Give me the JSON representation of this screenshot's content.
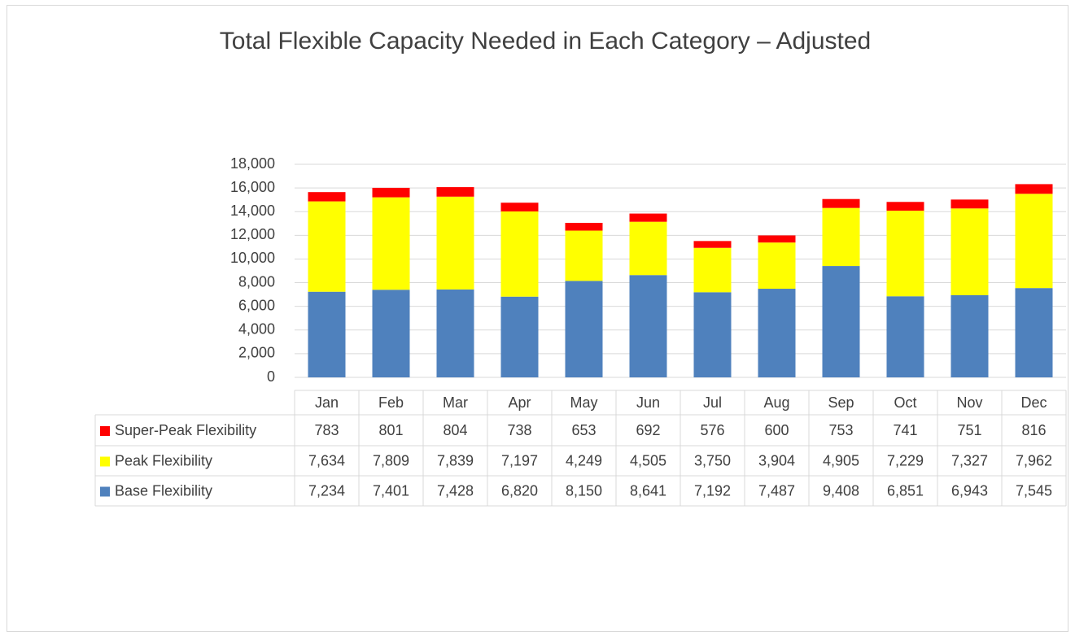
{
  "chart_data": {
    "type": "stacked_bar",
    "title": "Total Flexible Capacity Needed in Each Category – Adjusted",
    "categories": [
      "Jan",
      "Feb",
      "Mar",
      "Apr",
      "May",
      "Jun",
      "Jul",
      "Aug",
      "Sep",
      "Oct",
      "Nov",
      "Dec"
    ],
    "series": [
      {
        "name": "Base Flexibility",
        "color": "#4f81bd",
        "values": [
          7234,
          7401,
          7428,
          6820,
          8150,
          8641,
          7192,
          7487,
          9408,
          6851,
          6943,
          7545
        ],
        "value_labels": [
          "7,234",
          "7,401",
          "7,428",
          "6,820",
          "8,150",
          "8,641",
          "7,192",
          "7,487",
          "9,408",
          "6,851",
          "6,943",
          "7,545"
        ]
      },
      {
        "name": "Peak Flexibility",
        "color": "#ffff00",
        "values": [
          7634,
          7809,
          7839,
          7197,
          4249,
          4505,
          3750,
          3904,
          4905,
          7229,
          7327,
          7962
        ],
        "value_labels": [
          "7,634",
          "7,809",
          "7,839",
          "7,197",
          "4,249",
          "4,505",
          "3,750",
          "3,904",
          "4,905",
          "7,229",
          "7,327",
          "7,962"
        ]
      },
      {
        "name": "Super-Peak Flexibility",
        "color": "#ff0000",
        "values": [
          783,
          801,
          804,
          738,
          653,
          692,
          576,
          600,
          753,
          741,
          751,
          816
        ]
      }
    ],
    "ylim": [
      0,
      18000
    ],
    "yticks": [
      0,
      {
        "value": 2000,
        "label": "2,000"
      },
      {
        "value": 4000,
        "label": "4,000"
      },
      {
        "value": 6000,
        "label": "6,000"
      },
      {
        "value": 8000,
        "label": "8,000"
      },
      {
        "value": 10000,
        "label": "10,000"
      },
      {
        "value": 12000,
        "label": "12,000"
      },
      {
        "value": 14000,
        "label": "14,000"
      },
      {
        "value": 16000,
        "label": "16,000"
      },
      {
        "value": 18000,
        "label": "18,000"
      }
    ],
    "grid": true
  }
}
